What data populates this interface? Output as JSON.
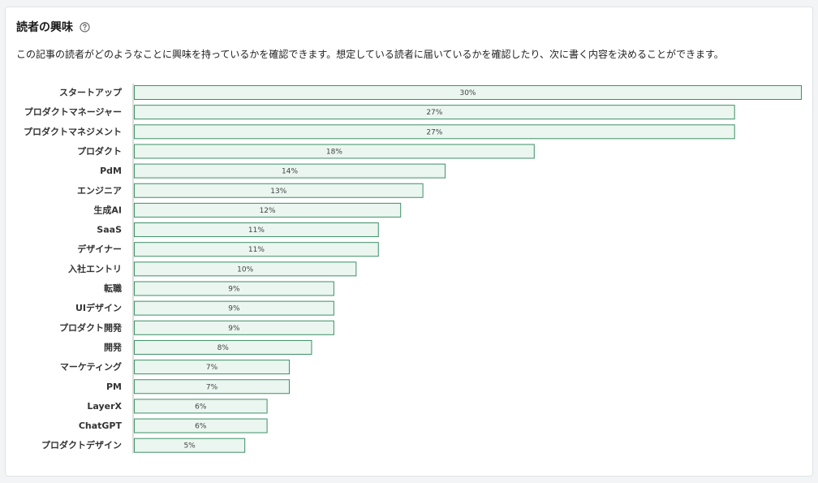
{
  "panel": {
    "title": "読者の興味",
    "help_icon": "question-circle-icon",
    "description": "この記事の読者がどのようなことに興味を持っているかを確認できます。想定している読者に届いているかを確認したり、次に書く内容を決めることができます。"
  },
  "colors": {
    "bar_fill": "#eaf6ef",
    "bar_stroke": "#3f8f68",
    "axis": "#bbbbbb"
  },
  "chart_data": {
    "type": "bar",
    "orientation": "horizontal",
    "categories": [
      "スタートアップ",
      "プロダクトマネージャー",
      "プロダクトマネジメント",
      "プロダクト",
      "PdM",
      "エンジニア",
      "生成AI",
      "SaaS",
      "デザイナー",
      "入社エントリ",
      "転職",
      "UIデザイン",
      "プロダクト開発",
      "開発",
      "マーケティング",
      "PM",
      "LayerX",
      "ChatGPT",
      "プロダクトデザイン"
    ],
    "values": [
      30,
      27,
      27,
      18,
      14,
      13,
      12,
      11,
      11,
      10,
      9,
      9,
      9,
      8,
      7,
      7,
      6,
      6,
      5
    ],
    "value_labels": [
      "30%",
      "27%",
      "27%",
      "18%",
      "14%",
      "13%",
      "12%",
      "11%",
      "11%",
      "10%",
      "9%",
      "9%",
      "9%",
      "8%",
      "7%",
      "7%",
      "6%",
      "6%",
      "5%"
    ],
    "unit": "%",
    "xlim": [
      0,
      30
    ],
    "grid": false,
    "legend": "none"
  }
}
